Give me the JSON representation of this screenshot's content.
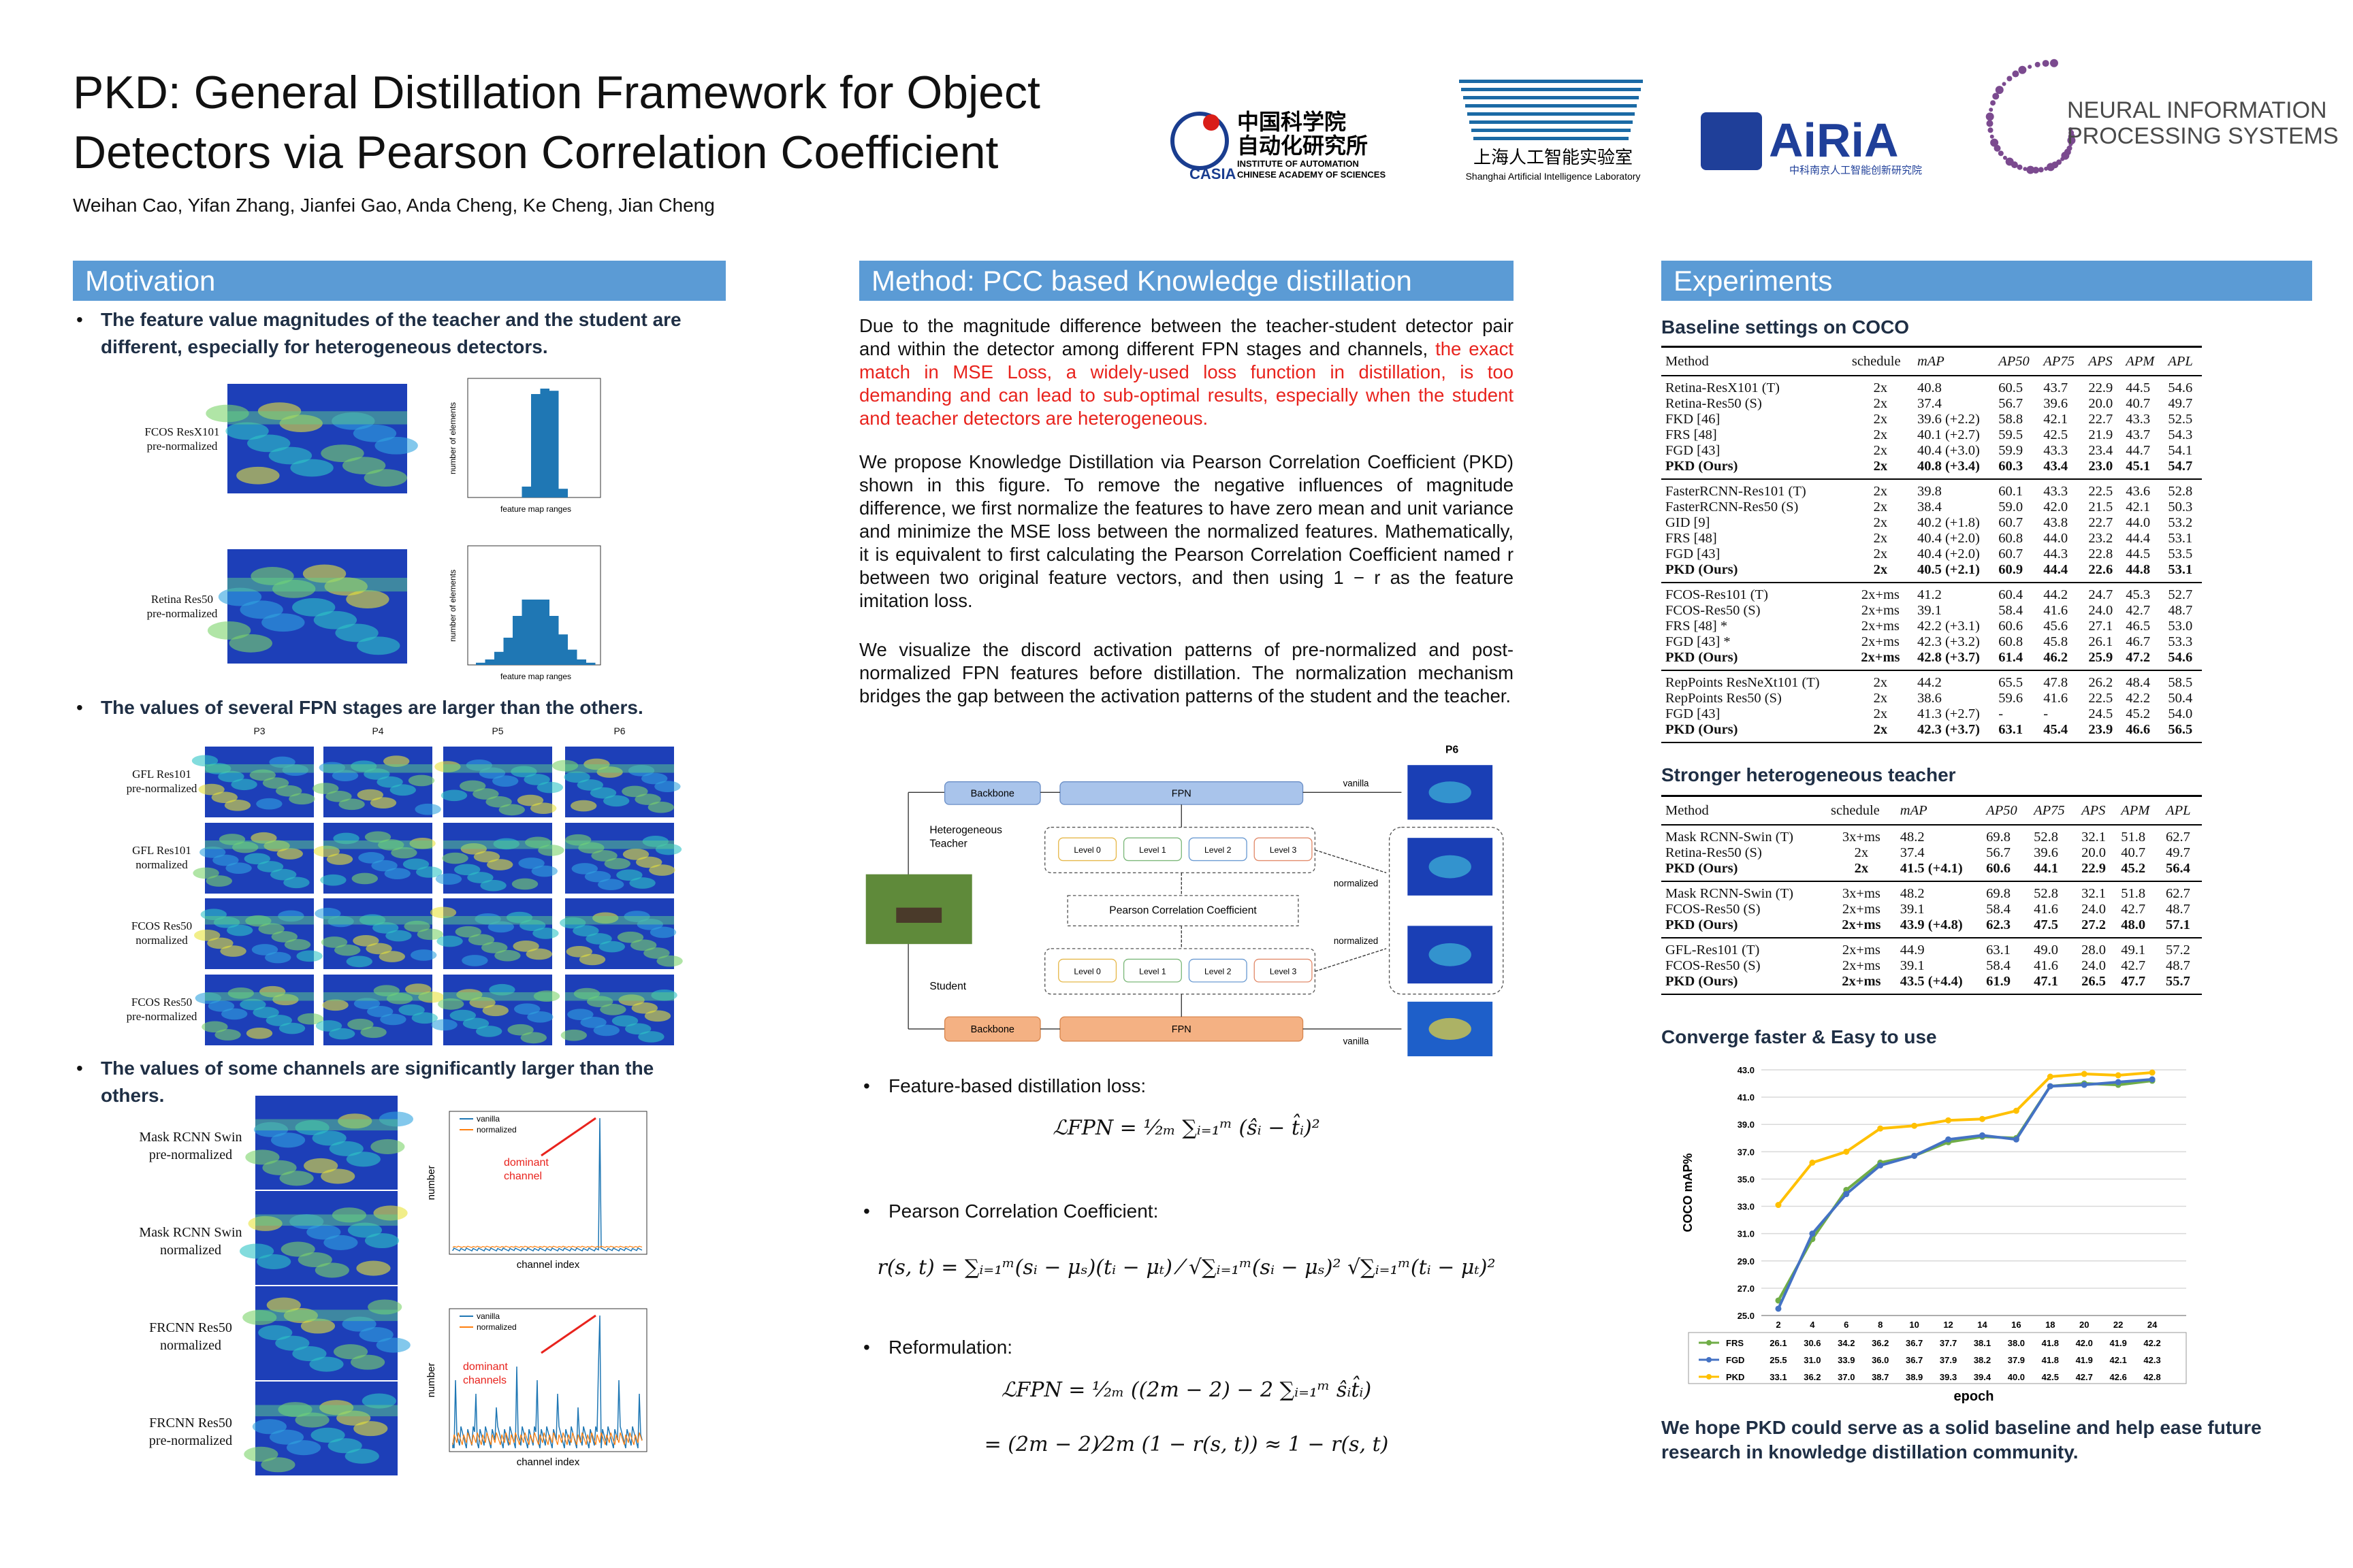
{
  "header": {
    "title_lines": [
      "PKD: General Distillation Framework for Object",
      "Detectors via Pearson Correlation Coefficient"
    ],
    "authors": "Weihan Cao, Yifan Zhang, Jianfei Gao, Anda Cheng, Ke Cheng, Jian Cheng",
    "logos": {
      "casia": [
        "中国科学院",
        "自动化研究所",
        "INSTITUTE OF AUTOMATION",
        "CHINESE ACADEMY OF SCIENCES",
        "CASIA"
      ],
      "shlab": [
        "上海人工智能实验室",
        "Shanghai Artificial Intelligence Laboratory"
      ],
      "airia": [
        "AiRiA",
        "中科南京人工智能创新研究院"
      ],
      "neurips": [
        "NEURAL INFORMATION",
        "PROCESSING SYSTEMS"
      ]
    }
  },
  "motivation": {
    "heading": "Motivation",
    "bullets": [
      "The feature value magnitudes of the teacher and the student are different, especially for heterogeneous detectors.",
      "The values of several FPN stages are larger than the others.",
      "The values of some channels are significantly larger than the others."
    ],
    "fig1": {
      "labels": [
        "FCOS ResX101\npre-normalized",
        "Retina Res50\npre-normalized"
      ],
      "xlabel": "feature map ranges",
      "ylabel": "number of elements"
    },
    "fig2": {
      "columns": [
        "P3",
        "P4",
        "P5",
        "P6"
      ],
      "rows": [
        "GFL Res101\npre-normalized",
        "GFL Res101\nnormalized",
        "FCOS Res50\nnormalized",
        "FCOS Res50\npre-normalized"
      ]
    },
    "fig3": {
      "rows": [
        "Mask RCNN Swin\npre-normalized",
        "Mask RCNN Swin\nnormalized",
        "FRCNN Res50\nnormalized",
        "FRCNN Res50\npre-normalized"
      ],
      "plots": [
        {
          "legend": [
            "vanilla",
            "normalized"
          ],
          "annotation": "dominant\nchannel",
          "xlabel": "channel index",
          "ylabel": "number"
        },
        {
          "legend": [
            "vanilla",
            "normalized"
          ],
          "annotation": "dominant\nchannels",
          "xlabel": "channel index",
          "ylabel": "number"
        }
      ]
    }
  },
  "method": {
    "heading": "Method: PCC based Knowledge distillation",
    "paragraphs": [
      {
        "text": "Due to the magnitude difference between the teacher-student detector pair and within the detector among different FPN stages and channels, ",
        "highlight": "the exact match in MSE Loss, a widely-used loss function in distillation, is too demanding and can lead to sub-optimal results, especially when the student and teacher detectors are heterogeneous."
      },
      {
        "text": "We propose Knowledge Distillation via Pearson Correlation Coefficient (PKD) shown in this figure. To remove the negative influences of magnitude difference, we first normalize the features to have zero mean and unit variance and minimize the MSE loss between the normalized features. Mathematically, it is equivalent to first calculating the Pearson Correlation Coefficient named r between two original feature vectors, and then using 1 − r as the feature imitation loss."
      },
      {
        "text": "We visualize the discord activation patterns of pre-normalized and post-normalized FPN features before distillation. The normalization mechanism bridges the gap between the activation patterns of the student and the teacher."
      }
    ],
    "diagram": {
      "backbone": "Backbone",
      "fpn": "FPN",
      "teacher": "Heterogeneous\nTeacher",
      "student": "Student",
      "levels": [
        "Level 0",
        "Level 1",
        "Level 2",
        "Level 3"
      ],
      "pcc": "Pearson Correlation Coefficient",
      "vanilla": "vanilla",
      "normalized": "normalized",
      "p6": "P6"
    },
    "bullets": [
      "Feature-based distillation loss:",
      "Pearson Correlation Coefficient:",
      "Reformulation:"
    ],
    "formulas": [
      "ℒFPN = ¹⁄₂ₘ ∑ᵢ₌₁ᵐ (ŝᵢ − t̂ᵢ)²",
      "r(s, t) = ∑ᵢ₌₁ᵐ(sᵢ − μₛ)(tᵢ − μₜ) ⁄ √∑ᵢ₌₁ᵐ(sᵢ − μₛ)² √∑ᵢ₌₁ᵐ(tᵢ − μₜ)²",
      "ℒFPN = ¹⁄₂ₘ ((2m − 2) − 2 ∑ᵢ₌₁ᵐ ŝᵢt̂ᵢ)",
      "= (2m − 2)⁄2m (1 − r(s, t)) ≈ 1 − r(s, t)"
    ],
    "highlight_color": "#e8231d"
  },
  "experiments": {
    "heading": "Experiments",
    "tables": [
      {
        "title": "Baseline settings on COCO",
        "columns": [
          "Method",
          "schedule",
          "mAP",
          "AP50",
          "AP75",
          "APS",
          "APM",
          "APL"
        ],
        "groups": [
          [
            [
              "Retina-ResX101 (T)",
              "2x",
              "40.8",
              "60.5",
              "43.7",
              "22.9",
              "44.5",
              "54.6"
            ],
            [
              "Retina-Res50 (S)",
              "2x",
              "37.4",
              "56.7",
              "39.6",
              "20.0",
              "40.7",
              "49.7"
            ],
            [
              "FKD [46]",
              "2x",
              "39.6 (+2.2)",
              "58.8",
              "42.1",
              "22.7",
              "43.3",
              "52.5"
            ],
            [
              "FRS [48]",
              "2x",
              "40.1 (+2.7)",
              "59.5",
              "42.5",
              "21.9",
              "43.7",
              "54.3"
            ],
            [
              "FGD [43]",
              "2x",
              "40.4 (+3.0)",
              "59.9",
              "43.3",
              "23.4",
              "44.7",
              "54.1"
            ],
            [
              "PKD (Ours)",
              "2x",
              "40.8 (+3.4)",
              "60.3",
              "43.4",
              "23.0",
              "45.1",
              "54.7"
            ]
          ],
          [
            [
              "FasterRCNN-Res101 (T)",
              "2x",
              "39.8",
              "60.1",
              "43.3",
              "22.5",
              "43.6",
              "52.8"
            ],
            [
              "FasterRCNN-Res50 (S)",
              "2x",
              "38.4",
              "59.0",
              "42.0",
              "21.5",
              "42.1",
              "50.3"
            ],
            [
              "GID [9]",
              "2x",
              "40.2 (+1.8)",
              "60.7",
              "43.8",
              "22.7",
              "44.0",
              "53.2"
            ],
            [
              "FRS [48]",
              "2x",
              "40.4 (+2.0)",
              "60.8",
              "44.0",
              "23.2",
              "44.4",
              "53.1"
            ],
            [
              "FGD [43]",
              "2x",
              "40.4 (+2.0)",
              "60.7",
              "44.3",
              "22.8",
              "44.5",
              "53.5"
            ],
            [
              "PKD (Ours)",
              "2x",
              "40.5 (+2.1)",
              "60.9",
              "44.4",
              "22.6",
              "44.8",
              "53.1"
            ]
          ],
          [
            [
              "FCOS-Res101 (T)",
              "2x+ms",
              "41.2",
              "60.4",
              "44.2",
              "24.7",
              "45.3",
              "52.7"
            ],
            [
              "FCOS-Res50 (S)",
              "2x+ms",
              "39.1",
              "58.4",
              "41.6",
              "24.0",
              "42.7",
              "48.7"
            ],
            [
              "FRS [48] *",
              "2x+ms",
              "42.2 (+3.1)",
              "60.6",
              "45.6",
              "27.1",
              "46.5",
              "53.0"
            ],
            [
              "FGD [43] *",
              "2x+ms",
              "42.3 (+3.2)",
              "60.8",
              "45.8",
              "26.1",
              "46.7",
              "53.3"
            ],
            [
              "PKD (Ours)",
              "2x+ms",
              "42.8 (+3.7)",
              "61.4",
              "46.2",
              "25.9",
              "47.2",
              "54.6"
            ]
          ],
          [
            [
              "RepPoints ResNeXt101 (T)",
              "2x",
              "44.2",
              "65.5",
              "47.8",
              "26.2",
              "48.4",
              "58.5"
            ],
            [
              "RepPoints Res50 (S)",
              "2x",
              "38.6",
              "59.6",
              "41.6",
              "22.5",
              "42.2",
              "50.4"
            ],
            [
              "FGD [43]",
              "2x",
              "41.3 (+2.7)",
              "-",
              "-",
              "24.5",
              "45.2",
              "54.0"
            ],
            [
              "PKD (Ours)",
              "2x",
              "42.3 (+3.7)",
              "63.1",
              "45.4",
              "23.9",
              "46.6",
              "56.5"
            ]
          ]
        ]
      },
      {
        "title": "Stronger heterogeneous teacher",
        "columns": [
          "Method",
          "schedule",
          "mAP",
          "AP50",
          "AP75",
          "APS",
          "APM",
          "APL"
        ],
        "groups": [
          [
            [
              "Mask RCNN-Swin (T)",
              "3x+ms",
              "48.2",
              "69.8",
              "52.8",
              "32.1",
              "51.8",
              "62.7"
            ],
            [
              "Retina-Res50 (S)",
              "2x",
              "37.4",
              "56.7",
              "39.6",
              "20.0",
              "40.7",
              "49.7"
            ],
            [
              "PKD (Ours)",
              "2x",
              "41.5 (+4.1)",
              "60.6",
              "44.1",
              "22.9",
              "45.2",
              "56.4"
            ]
          ],
          [
            [
              "Mask RCNN-Swin (T)",
              "3x+ms",
              "48.2",
              "69.8",
              "52.8",
              "32.1",
              "51.8",
              "62.7"
            ],
            [
              "FCOS-Res50 (S)",
              "2x+ms",
              "39.1",
              "58.4",
              "41.6",
              "24.0",
              "42.7",
              "48.7"
            ],
            [
              "PKD (Ours)",
              "2x+ms",
              "43.9 (+4.8)",
              "62.3",
              "47.5",
              "27.2",
              "48.0",
              "57.1"
            ]
          ],
          [
            [
              "GFL-Res101 (T)",
              "2x+ms",
              "44.9",
              "63.1",
              "49.0",
              "28.0",
              "49.1",
              "57.2"
            ],
            [
              "FCOS-Res50 (S)",
              "2x+ms",
              "39.1",
              "58.4",
              "41.6",
              "24.0",
              "42.7",
              "48.7"
            ],
            [
              "PKD (Ours)",
              "2x+ms",
              "43.5 (+4.4)",
              "61.9",
              "47.1",
              "26.5",
              "47.7",
              "55.7"
            ]
          ]
        ]
      }
    ],
    "chart": {
      "type": "line",
      "title": "Converge faster & Easy to use",
      "x": [
        2,
        4,
        6,
        8,
        10,
        12,
        14,
        16,
        18,
        20,
        22,
        24
      ],
      "xlim": [
        1,
        26
      ],
      "ylim": [
        25,
        43
      ],
      "yticks": [
        {
          "value": 25,
          "label": "25.0"
        },
        {
          "value": 27,
          "label": "27.0"
        },
        {
          "value": 29,
          "label": "29.0"
        },
        {
          "value": 31,
          "label": "31.0"
        },
        {
          "value": 33,
          "label": "33.0"
        },
        {
          "value": 35,
          "label": "35.0"
        },
        {
          "value": 37,
          "label": "37.0"
        },
        {
          "value": 39,
          "label": "39.0"
        },
        {
          "value": 41,
          "label": "41.0"
        },
        {
          "value": 43,
          "label": "43.0"
        }
      ],
      "ylabel": "COCO mAP%",
      "xlabel": "epoch",
      "grid": true,
      "series": [
        {
          "name": "FRS",
          "color": "#70ad47",
          "values": [
            26.1,
            30.6,
            34.2,
            36.2,
            36.7,
            37.7,
            38.1,
            38.0,
            41.8,
            42.0,
            41.9,
            42.2
          ],
          "value_labels": [
            "26.1",
            "30.6",
            "34.2",
            "36.2",
            "36.7",
            "37.7",
            "38.1",
            "38.0",
            "41.8",
            "42.0",
            "41.9",
            "42.2"
          ]
        },
        {
          "name": "FGD",
          "color": "#4472c4",
          "values": [
            25.5,
            31.0,
            33.9,
            36.0,
            36.7,
            37.9,
            38.2,
            37.9,
            41.8,
            41.9,
            42.1,
            42.3
          ],
          "value_labels": [
            "25.5",
            "31.0",
            "33.9",
            "36.0",
            "36.7",
            "37.9",
            "38.2",
            "37.9",
            "41.8",
            "41.9",
            "42.1",
            "42.3"
          ]
        },
        {
          "name": "PKD",
          "color": "#ffc000",
          "values": [
            33.1,
            36.2,
            37.0,
            38.7,
            38.9,
            39.3,
            39.4,
            40.0,
            42.5,
            42.7,
            42.6,
            42.8
          ],
          "value_labels": [
            "33.1",
            "36.2",
            "37.0",
            "38.7",
            "38.9",
            "39.3",
            "39.4",
            "40.0",
            "42.5",
            "42.7",
            "42.6",
            "42.8"
          ]
        }
      ]
    },
    "conclusion": "We hope PKD could serve as a solid baseline and help ease future research in knowledge distillation community."
  }
}
